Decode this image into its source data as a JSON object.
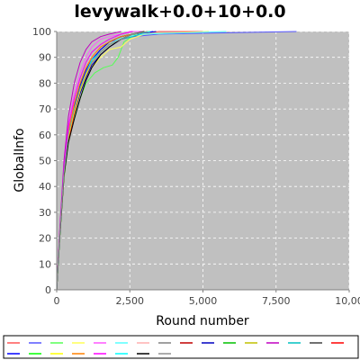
{
  "chart_data": {
    "type": "line",
    "title": "levywalk+0.0+10+0.0",
    "xlabel": "Round number",
    "ylabel": "GlobalInfo",
    "xlim": [
      0,
      10000
    ],
    "ylim": [
      0,
      100
    ],
    "xtick_labels": [
      "0",
      "2,500",
      "5,000",
      "7,500",
      "10,00"
    ],
    "ytick_labels": [
      "0",
      "10",
      "20",
      "30",
      "40",
      "50",
      "60",
      "70",
      "80",
      "90",
      "100"
    ],
    "grid": true,
    "plot_background": "#c0c0c0",
    "legend_placement": "bottom",
    "series": [
      {
        "color": "#ff5555",
        "x": [
          0,
          100,
          250,
          400,
          600,
          800,
          1000,
          1200,
          1500,
          1800,
          2200,
          2600,
          3500,
          5000
        ],
        "y": [
          0,
          20,
          45,
          60,
          70,
          78,
          85,
          90,
          94,
          96,
          98,
          99,
          100,
          100
        ]
      },
      {
        "color": "#5555ff",
        "x": [
          0,
          100,
          250,
          400,
          600,
          800,
          1000,
          1200,
          1500,
          1800,
          2200,
          2600,
          3500,
          8200
        ],
        "y": [
          0,
          21,
          44,
          58,
          68,
          77,
          84,
          89,
          93,
          96,
          97,
          98,
          99,
          100
        ]
      },
      {
        "color": "#55ff55",
        "x": [
          0,
          100,
          250,
          400,
          600,
          800,
          1000,
          1300,
          1600,
          1900,
          2100,
          2300,
          2700,
          3200
        ],
        "y": [
          0,
          20,
          43,
          57,
          67,
          74,
          80,
          84,
          86,
          87,
          90,
          96,
          99,
          100
        ]
      },
      {
        "color": "#ffff55",
        "x": [
          0,
          100,
          250,
          400,
          600,
          800,
          1000,
          1200,
          1500,
          1800,
          2200,
          2500,
          3000,
          5200
        ],
        "y": [
          0,
          20,
          44,
          59,
          69,
          76,
          82,
          86,
          90,
          93,
          94,
          97,
          99,
          100
        ]
      },
      {
        "color": "#ff55ff",
        "x": [
          0,
          100,
          250,
          400,
          600,
          800,
          1000,
          1200,
          1500,
          1800,
          2200,
          2500,
          3000
        ],
        "y": [
          0,
          22,
          48,
          64,
          76,
          84,
          90,
          94,
          97,
          98,
          99,
          100,
          100
        ]
      },
      {
        "color": "#55ffff",
        "x": [
          0,
          100,
          250,
          400,
          600,
          800,
          1000,
          1200,
          1500,
          1800,
          2100,
          2400,
          3000,
          5800
        ],
        "y": [
          0,
          20,
          45,
          60,
          70,
          78,
          84,
          88,
          92,
          95,
          97,
          98,
          99,
          100
        ]
      },
      {
        "color": "#ffafaf",
        "x": [
          0,
          100,
          250,
          400,
          600,
          800,
          1000,
          1200,
          1500,
          1800,
          2200,
          2600,
          3200
        ],
        "y": [
          0,
          21,
          46,
          62,
          72,
          80,
          86,
          90,
          94,
          96,
          98,
          99,
          100
        ]
      },
      {
        "color": "#808080",
        "x": [
          0,
          100,
          250,
          400,
          600,
          800,
          1000,
          1200,
          1500,
          1800,
          2200,
          2600
        ],
        "y": [
          0,
          20,
          47,
          63,
          74,
          82,
          88,
          92,
          95,
          97,
          99,
          100
        ]
      },
      {
        "color": "#c00000",
        "x": [
          0,
          100,
          250,
          400,
          600,
          800,
          1000,
          1200,
          1500,
          1800,
          2200,
          2600,
          3200
        ],
        "y": [
          0,
          21,
          45,
          59,
          69,
          77,
          83,
          88,
          92,
          95,
          97,
          99,
          100
        ]
      },
      {
        "color": "#0000c0",
        "x": [
          0,
          100,
          250,
          400,
          600,
          800,
          1000,
          1200,
          1500,
          1800,
          2200,
          2600,
          3400
        ],
        "y": [
          0,
          20,
          44,
          58,
          68,
          76,
          82,
          87,
          91,
          94,
          97,
          99,
          100
        ]
      },
      {
        "color": "#00c000",
        "x": [
          0,
          100,
          250,
          400,
          600,
          800,
          1000,
          1200,
          1500,
          1800,
          2200,
          2600,
          3000
        ],
        "y": [
          0,
          21,
          46,
          61,
          71,
          79,
          85,
          89,
          93,
          96,
          98,
          99,
          100
        ]
      },
      {
        "color": "#c0c000",
        "x": [
          0,
          100,
          250,
          400,
          600,
          800,
          1000,
          1200,
          1500,
          1800,
          2200,
          2600,
          3100
        ],
        "y": [
          0,
          20,
          45,
          60,
          70,
          78,
          84,
          89,
          92,
          95,
          97,
          99,
          100
        ]
      },
      {
        "color": "#c000c0",
        "x": [
          0,
          100,
          250,
          400,
          600,
          800,
          1000,
          1200,
          1500,
          1800,
          2200
        ],
        "y": [
          0,
          23,
          50,
          67,
          80,
          88,
          93,
          96,
          98,
          99,
          100
        ]
      },
      {
        "color": "#00c0c0",
        "x": [
          0,
          100,
          250,
          400,
          600,
          800,
          1000,
          1200,
          1500,
          1800,
          2200,
          2600,
          3100
        ],
        "y": [
          0,
          20,
          44,
          59,
          69,
          77,
          84,
          88,
          92,
          95,
          97,
          98,
          100
        ]
      },
      {
        "color": "#404040",
        "x": [
          0,
          100,
          250,
          400,
          600,
          800,
          1000,
          1200,
          1500,
          1800,
          2200,
          2600,
          3000
        ],
        "y": [
          0,
          21,
          45,
          60,
          70,
          78,
          84,
          89,
          93,
          96,
          98,
          99,
          100
        ]
      },
      {
        "color": "#ff0000",
        "x": [
          0,
          100,
          250,
          400,
          600,
          800,
          1000,
          1200,
          1500,
          1800,
          2200,
          2600,
          3200
        ],
        "y": [
          0,
          20,
          44,
          58,
          68,
          77,
          83,
          88,
          92,
          95,
          97,
          99,
          100
        ]
      },
      {
        "color": "#0000ff",
        "x": [
          0,
          100,
          250,
          400,
          600,
          800,
          1000,
          1200,
          1500,
          1800,
          2200,
          2600,
          3300
        ],
        "y": [
          0,
          21,
          46,
          61,
          71,
          79,
          85,
          89,
          93,
          96,
          98,
          99,
          100
        ]
      },
      {
        "color": "#00ff00",
        "x": [
          0,
          100,
          250,
          400,
          600,
          800,
          1000,
          1200,
          1500,
          1800,
          2200,
          2600,
          3000
        ],
        "y": [
          0,
          20,
          45,
          60,
          70,
          78,
          84,
          88,
          92,
          95,
          97,
          99,
          100
        ]
      },
      {
        "color": "#ffff00",
        "x": [
          0,
          100,
          250,
          400,
          600,
          800,
          1000,
          1200,
          1500,
          1800,
          2200,
          2600,
          3200
        ],
        "y": [
          0,
          20,
          44,
          59,
          69,
          77,
          83,
          88,
          92,
          95,
          97,
          99,
          100
        ]
      },
      {
        "color": "#ff8000",
        "x": [
          0,
          100,
          250,
          400,
          600,
          800,
          1000,
          1200,
          1500,
          1800,
          2200,
          2600,
          3000
        ],
        "y": [
          0,
          21,
          46,
          61,
          72,
          80,
          86,
          90,
          94,
          96,
          98,
          99,
          100
        ]
      },
      {
        "color": "#ff00ff",
        "x": [
          0,
          100,
          250,
          400,
          600,
          800,
          1000,
          1200,
          1500,
          1800,
          2200,
          2600
        ],
        "y": [
          0,
          22,
          47,
          63,
          74,
          82,
          88,
          92,
          95,
          97,
          99,
          100
        ]
      },
      {
        "color": "#00ffff",
        "x": [
          0,
          100,
          250,
          400,
          600,
          800,
          1000,
          1200,
          1500,
          1800,
          2200,
          2600,
          3200
        ],
        "y": [
          0,
          20,
          45,
          60,
          70,
          78,
          84,
          89,
          92,
          95,
          97,
          99,
          100
        ]
      },
      {
        "color": "#000000",
        "x": [
          0,
          100,
          250,
          400,
          600,
          800,
          1000,
          1200,
          1500,
          1800,
          2200,
          2600,
          3000
        ],
        "y": [
          0,
          20,
          44,
          57,
          66,
          74,
          81,
          86,
          91,
          94,
          97,
          99,
          100
        ]
      },
      {
        "color": "#909090",
        "x": [
          0,
          100,
          250,
          400,
          600,
          800,
          1000,
          1200,
          1500,
          1800,
          2200,
          2600,
          3100
        ],
        "y": [
          0,
          21,
          45,
          60,
          70,
          78,
          84,
          88,
          92,
          95,
          97,
          99,
          100
        ]
      }
    ]
  }
}
